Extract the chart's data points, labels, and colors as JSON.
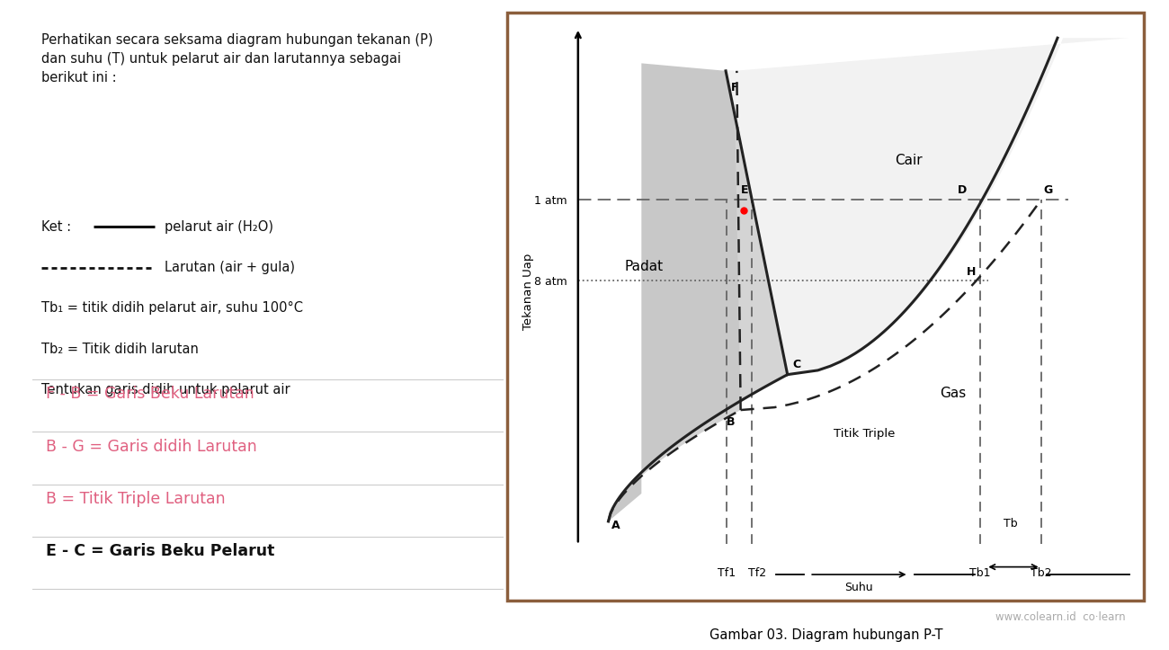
{
  "bg_color": "#ffffff",
  "outer_box_color": "#8B5E3C",
  "solid_gray": "#c8c8c8",
  "solid_hatched_gray": "#d8d8d8",
  "liquid_dot_color": "#e8e8e8",
  "title_text": "Perhatikan secara seksama diagram hubungan tekanan (P)\ndan suhu (T) untuk pelarut air dan larutannya sebagai\nberikut ini :",
  "ket_label": "Ket : ",
  "ket_line1": "pelarut air (H₂O)",
  "ket_line2": "Larutan (air + gula)",
  "tb1_text": "Tb₁ = titik didih pelarut air, suhu 100°C",
  "tb2_text": "Tb₂ = Titik didih larutan",
  "tentukan_text": "Tentukan garis didih untuk pelarut air",
  "answer1": "F - B = Garis Beku Larutan",
  "answer2": "B - G = Garis didih Larutan",
  "answer3": "B = Titik Triple Larutan",
  "answer4": "E - C = Garis Beku Pelarut",
  "answer_color": "#e06080",
  "answer4_color": "#111111",
  "ylabel": "Tekanan Uap",
  "p_label_1atm": "1 atm",
  "p_label_8atm": "8 atm",
  "label_tf1": "Tf1",
  "label_tf2": "Tf2",
  "label_suhu": "Suhu",
  "label_tb1": "Tb1",
  "label_tb2": "Tb2",
  "label_tb": "Tb",
  "region_padat": "Padat",
  "region_cair": "Cair",
  "region_gas": "Gas",
  "titik_triple": "Titik Triple",
  "caption": "Gambar 03. Diagram hubungan P-T",
  "watermark": "www.colearn.id",
  "colearn_brand": "co·learn",
  "line_color": "#222222",
  "dashed_line_color": "#222222",
  "ref_line_color": "#666666"
}
